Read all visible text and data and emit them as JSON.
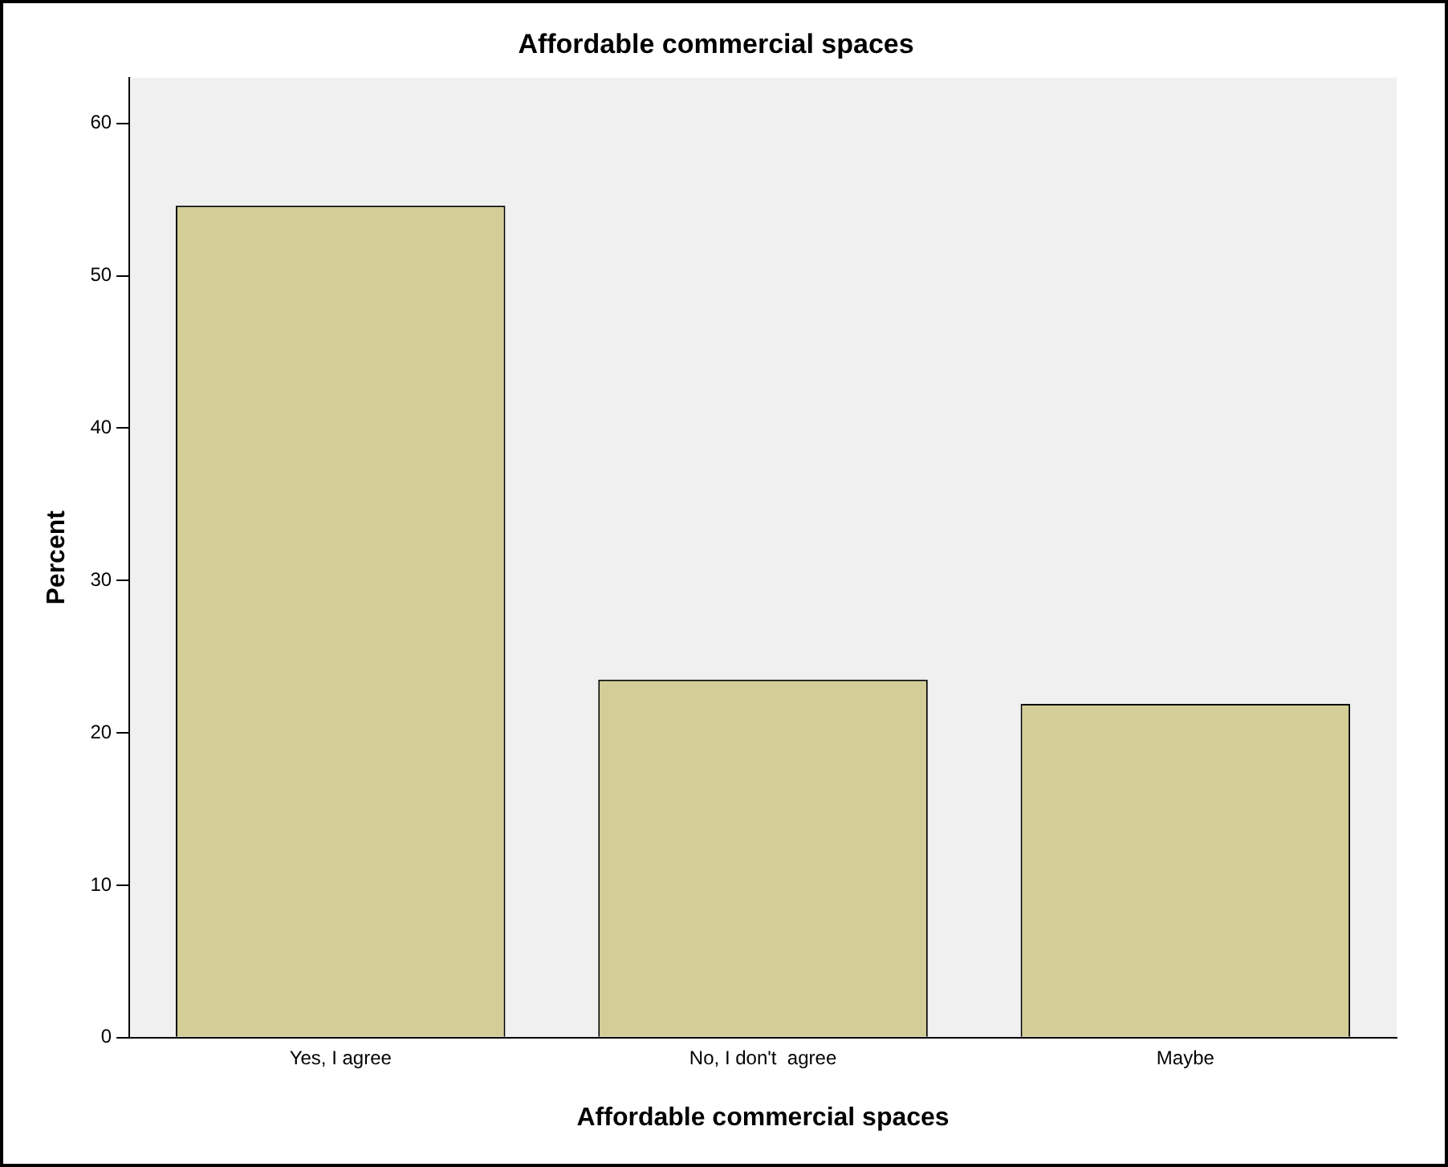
{
  "chart_data": {
    "type": "bar",
    "title": "Affordable commercial spaces",
    "xlabel": "Affordable commercial spaces",
    "ylabel": "Percent",
    "categories": [
      "Yes, I agree",
      "No, I don't  agree",
      "Maybe"
    ],
    "values": [
      54.6,
      23.5,
      21.9
    ],
    "color": "#d3ce97",
    "ylim": [
      0,
      63
    ],
    "yticks": [
      0,
      10,
      20,
      30,
      40,
      50,
      60
    ],
    "grid": false,
    "legend": false
  }
}
